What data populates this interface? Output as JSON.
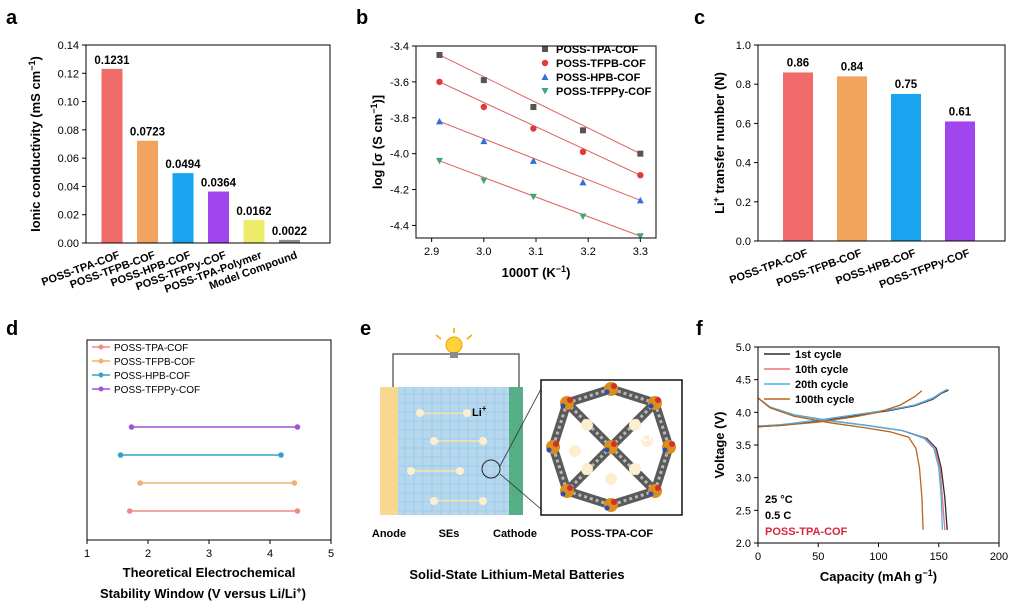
{
  "panel_labels": [
    "a",
    "b",
    "c",
    "d",
    "e",
    "f"
  ],
  "colors": {
    "tpa": "#f26b6b",
    "tfpb": "#f2a45e",
    "hpb": "#1aa3ee",
    "tfppy": "#a146ef",
    "polymer": "#ecec68",
    "model": "#8c8c8c",
    "fit": "#e06060",
    "sq": "#555555",
    "circ": "#e03a3a",
    "tri": "#2f6fd6",
    "invtri": "#3ea878",
    "anode": "#f8d890",
    "se": "#b6d8ee",
    "cathode": "#56ae86",
    "d_tpa": "#f08a80",
    "d_tfpb": "#f3b072",
    "d_hpb": "#34a4c6",
    "d_tfppy": "#9b55d8",
    "f_1st": "#2b2b2b",
    "f_10th": "#e8707a",
    "f_20th": "#4bb0e6",
    "f_100th": "#b8641c",
    "f_red": "#d7263d"
  },
  "chart_data": [
    {
      "id": "a",
      "type": "bar",
      "categories": [
        "POSS-TPA-COF",
        "POSS-TFPB-COF",
        "POSS-HPB-COF",
        "POSS-TFPPy-COF",
        "POSS-TPA-Polymer",
        "Model Compound"
      ],
      "values": [
        0.1231,
        0.0723,
        0.0494,
        0.0364,
        0.0162,
        0.0022
      ],
      "value_labels": [
        "0.1231",
        "0.0723",
        "0.0494",
        "0.0364",
        "0.0162",
        "0.0022"
      ],
      "ylabel": "Ionic conductivity (mS cm",
      "ylabel_sup": "−1",
      "ylabel_end": ")",
      "ylim": [
        0,
        0.14
      ],
      "yticks": [
        0.0,
        0.02,
        0.04,
        0.06,
        0.08,
        0.1,
        0.12,
        0.14
      ],
      "ytick_labels": [
        "0.00",
        "0.02",
        "0.04",
        "0.06",
        "0.08",
        "0.10",
        "0.12",
        "0.14"
      ]
    },
    {
      "id": "b",
      "type": "scatter",
      "xlabel": "1000T (K",
      "xlabel_sup": "−1",
      "xlabel_end": ")",
      "ylabel": "log [σ (S cm",
      "ylabel_sup": "−1",
      "ylabel_end": ")]",
      "xlim": [
        2.87,
        3.33
      ],
      "ylim": [
        -4.47,
        -3.4
      ],
      "xticks": [
        2.9,
        3.0,
        3.1,
        3.2,
        3.3
      ],
      "xtick_labels": [
        "2.9",
        "3.0",
        "3.1",
        "3.2",
        "3.3"
      ],
      "yticks": [
        -3.4,
        -3.6,
        -3.8,
        -4.0,
        -4.2,
        -4.4
      ],
      "ytick_labels": [
        "-3.4",
        "-3.6",
        "-3.8",
        "-4.0",
        "-4.2",
        "-4.4"
      ],
      "x": [
        2.915,
        3.0,
        3.095,
        3.19,
        3.3
      ],
      "series": [
        {
          "name": "POSS-TPA-COF",
          "marker": "square",
          "values": [
            -3.45,
            -3.59,
            -3.74,
            -3.87,
            -4.0
          ]
        },
        {
          "name": "POSS-TFPB-COF",
          "marker": "circle",
          "values": [
            -3.6,
            -3.74,
            -3.86,
            -3.99,
            -4.12
          ]
        },
        {
          "name": "POSS-HPB-COF",
          "marker": "triangle",
          "values": [
            -3.82,
            -3.93,
            -4.04,
            -4.16,
            -4.26
          ]
        },
        {
          "name": "POSS-TFPPy-COF",
          "marker": "inv-triangle",
          "values": [
            -4.04,
            -4.15,
            -4.24,
            -4.35,
            -4.46
          ]
        }
      ],
      "legend_position": "top-right"
    },
    {
      "id": "c",
      "type": "bar",
      "categories": [
        "POSS-TPA-COF",
        "POSS-TFPB-COF",
        "POSS-HPB-COF",
        "POSS-TFPPy-COF"
      ],
      "values": [
        0.86,
        0.84,
        0.75,
        0.61
      ],
      "value_labels": [
        "0.86",
        "0.84",
        "0.75",
        "0.61"
      ],
      "ylabel_pre": "Li",
      "ylabel_sup": "+",
      "ylabel": " transfer number (N)",
      "ylim": [
        0,
        1.0
      ],
      "yticks": [
        0.0,
        0.2,
        0.4,
        0.6,
        0.8,
        1.0
      ],
      "ytick_labels": [
        "0.0",
        "0.2",
        "0.4",
        "0.6",
        "0.8",
        "1.0"
      ]
    },
    {
      "id": "d",
      "type": "range",
      "xlim": [
        1,
        5
      ],
      "xticks": [
        1,
        2,
        3,
        4,
        5
      ],
      "xtick_labels": [
        "1",
        "2",
        "3",
        "4",
        "5"
      ],
      "xlabel_line1": "Theoretical Electrochemical",
      "xlabel_line2": "Stability Window (V versus Li/Li",
      "xlabel_sup": "+",
      "xlabel_end": ")",
      "series": [
        {
          "name": "POSS-TPA-COF",
          "start": 1.7,
          "end": 4.45
        },
        {
          "name": "POSS-TFPB-COF",
          "start": 1.87,
          "end": 4.4
        },
        {
          "name": "POSS-HPB-COF",
          "start": 1.55,
          "end": 4.18
        },
        {
          "name": "POSS-TFPPy-COF",
          "start": 1.73,
          "end": 4.45
        }
      ],
      "legend_position": "top-left"
    },
    {
      "id": "f",
      "type": "line",
      "xlabel": "Capacity (mAh g",
      "xlabel_sup": "−1",
      "xlabel_end": ")",
      "ylabel": "Voltage (V)",
      "xlim": [
        0,
        200
      ],
      "ylim": [
        2.0,
        5.0
      ],
      "xticks": [
        0,
        50,
        100,
        150,
        200
      ],
      "xtick_labels": [
        "0",
        "50",
        "100",
        "150",
        "200"
      ],
      "yticks": [
        2.0,
        2.5,
        3.0,
        3.5,
        4.0,
        4.5,
        5.0
      ],
      "ytick_labels": [
        "2.0",
        "2.5",
        "3.0",
        "3.5",
        "4.0",
        "4.5",
        "5.0"
      ],
      "series": [
        {
          "name": "1st cycle",
          "charge": [
            [
              0,
              3.78
            ],
            [
              20,
              3.8
            ],
            [
              50,
              3.87
            ],
            [
              80,
              3.95
            ],
            [
              110,
              4.03
            ],
            [
              130,
              4.1
            ],
            [
              145,
              4.2
            ],
            [
              152,
              4.29
            ],
            [
              158,
              4.34
            ]
          ],
          "discharge": [
            [
              0,
              4.22
            ],
            [
              10,
              4.08
            ],
            [
              30,
              3.96
            ],
            [
              60,
              3.87
            ],
            [
              90,
              3.8
            ],
            [
              120,
              3.72
            ],
            [
              140,
              3.6
            ],
            [
              148,
              3.45
            ],
            [
              152,
              3.15
            ],
            [
              155,
              2.7
            ],
            [
              157,
              2.2
            ]
          ]
        },
        {
          "name": "10th cycle",
          "charge": [
            [
              0,
              3.79
            ],
            [
              20,
              3.81
            ],
            [
              50,
              3.88
            ],
            [
              80,
              3.96
            ],
            [
              110,
              4.04
            ],
            [
              130,
              4.11
            ],
            [
              145,
              4.21
            ],
            [
              151,
              4.29
            ],
            [
              156,
              4.34
            ]
          ],
          "discharge": [
            [
              0,
              4.22
            ],
            [
              10,
              4.08
            ],
            [
              30,
              3.96
            ],
            [
              60,
              3.87
            ],
            [
              90,
              3.8
            ],
            [
              120,
              3.72
            ],
            [
              139,
              3.6
            ],
            [
              147,
              3.45
            ],
            [
              151,
              3.15
            ],
            [
              153,
              2.7
            ],
            [
              155,
              2.2
            ]
          ]
        },
        {
          "name": "20th cycle",
          "charge": [
            [
              0,
              3.79
            ],
            [
              20,
              3.81
            ],
            [
              50,
              3.88
            ],
            [
              80,
              3.96
            ],
            [
              110,
              4.04
            ],
            [
              130,
              4.11
            ],
            [
              145,
              4.22
            ],
            [
              152,
              4.3
            ],
            [
              157,
              4.35
            ]
          ],
          "discharge": [
            [
              0,
              4.22
            ],
            [
              10,
              4.08
            ],
            [
              30,
              3.96
            ],
            [
              60,
              3.87
            ],
            [
              90,
              3.8
            ],
            [
              120,
              3.72
            ],
            [
              138,
              3.6
            ],
            [
              146,
              3.45
            ],
            [
              150,
              3.15
            ],
            [
              152,
              2.7
            ],
            [
              153,
              2.2
            ]
          ]
        },
        {
          "name": "100th cycle",
          "charge": [
            [
              0,
              3.78
            ],
            [
              20,
              3.8
            ],
            [
              50,
              3.85
            ],
            [
              80,
              3.93
            ],
            [
              100,
              4.0
            ],
            [
              118,
              4.11
            ],
            [
              130,
              4.24
            ],
            [
              136,
              4.33
            ]
          ],
          "discharge": [
            [
              0,
              4.22
            ],
            [
              10,
              4.07
            ],
            [
              30,
              3.94
            ],
            [
              60,
              3.84
            ],
            [
              90,
              3.76
            ],
            [
              110,
              3.7
            ],
            [
              125,
              3.62
            ],
            [
              131,
              3.45
            ],
            [
              134,
              3.15
            ],
            [
              136,
              2.7
            ],
            [
              137,
              2.2
            ]
          ]
        }
      ],
      "legend_position": "top-left",
      "annotations": [
        "25 °C",
        "0.5 C",
        "POSS-TPA-COF"
      ]
    }
  ],
  "panel_e": {
    "anode": "Anode",
    "se": "SEs",
    "cathode": "Cathode",
    "ion": "Li",
    "ion_sup": "+",
    "inset_label": "POSS-TPA-COF",
    "caption": "Solid-State Lithium-Metal Batteries"
  }
}
